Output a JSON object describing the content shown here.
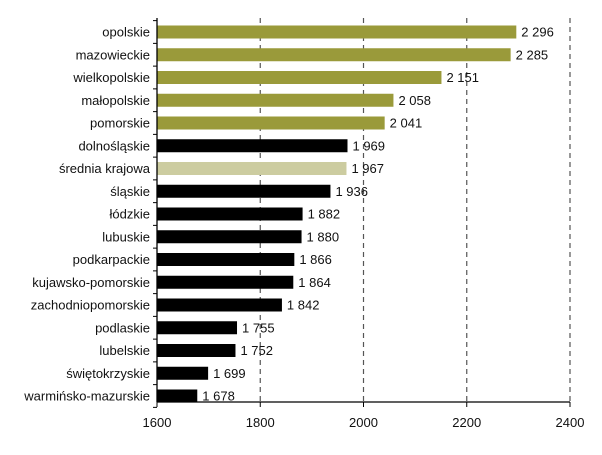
{
  "chart_data": {
    "type": "bar",
    "orientation": "horizontal",
    "title": "",
    "xlabel": "",
    "ylabel": "",
    "xlim": [
      1600,
      2400
    ],
    "x_ticks": [
      1600,
      1800,
      2000,
      2200,
      2400
    ],
    "x_tick_labels": [
      "1600",
      "1800",
      "2000",
      "2200",
      "2400"
    ],
    "grid": "vertical dashed",
    "legend": "none",
    "categories": [
      "opolskie",
      "mazowieckie",
      "wielkopolskie",
      "małopolskie",
      "pomorskie",
      "dolnośląskie",
      "średnia krajowa",
      "śląskie",
      "łódzkie",
      "lubuskie",
      "podkarpackie",
      "kujawsko-pomorskie",
      "zachodniopomorskie",
      "podlaskie",
      "lubelskie",
      "świętokrzyskie",
      "warmińsko-mazurskie"
    ],
    "values": [
      2296,
      2285,
      2151,
      2058,
      2041,
      1969,
      1967,
      1936,
      1882,
      1880,
      1866,
      1864,
      1842,
      1755,
      1752,
      1699,
      1678
    ],
    "value_labels": [
      "2 296",
      "2 285",
      "2 151",
      "2 058",
      "2 041",
      "1 969",
      "1 967",
      "1 936",
      "1 882",
      "1 880",
      "1 866",
      "1 864",
      "1 842",
      "1 755",
      "1 752",
      "1 699",
      "1 678"
    ],
    "bar_colors": [
      "#9a9a3a",
      "#9a9a3a",
      "#9a9a3a",
      "#9a9a3a",
      "#9a9a3a",
      "#000000",
      "#cccca0",
      "#000000",
      "#000000",
      "#000000",
      "#000000",
      "#000000",
      "#000000",
      "#000000",
      "#000000",
      "#000000",
      "#000000"
    ]
  }
}
